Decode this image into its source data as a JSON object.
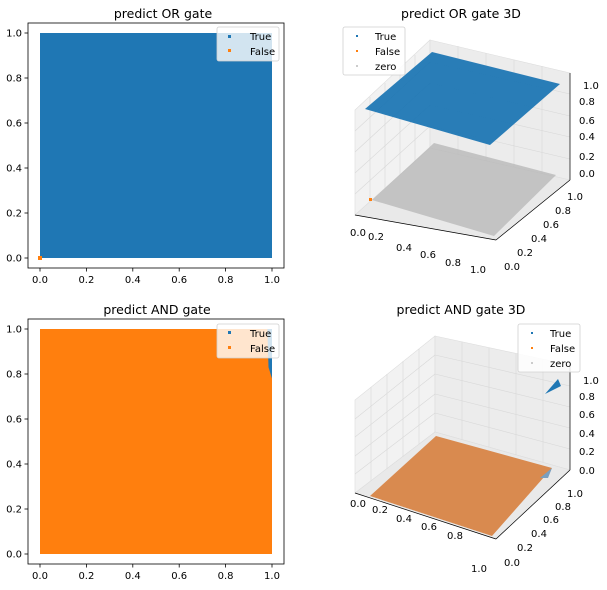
{
  "colors": {
    "true": "#1f77b4",
    "false": "#ff7f0e",
    "zero_plane": "#bdbdbd",
    "pane": "#f2f2f2",
    "grid": "#cccccc"
  },
  "chart_data": [
    {
      "type": "scatter",
      "title": "predict OR gate",
      "xlim": [
        0,
        1
      ],
      "ylim": [
        0,
        1
      ],
      "xticks": [
        "0.0",
        "0.2",
        "0.4",
        "0.6",
        "0.8",
        "1.0"
      ],
      "yticks": [
        "0.0",
        "0.2",
        "0.4",
        "0.6",
        "0.8",
        "1.0"
      ],
      "legend": {
        "placement": "top-right",
        "entries": [
          "True",
          "False"
        ]
      },
      "series": [
        {
          "name": "True",
          "color": "#1f77b4",
          "region": [
            [
              0,
              0
            ],
            [
              1,
              0
            ],
            [
              1,
              1
            ],
            [
              0,
              1
            ]
          ]
        },
        {
          "name": "False",
          "color": "#ff7f0e",
          "points": [
            [
              0,
              0
            ]
          ]
        }
      ]
    },
    {
      "type": "scatter3d",
      "title": "predict OR gate 3D",
      "xticks": [
        "0.0",
        "0.2",
        "0.4",
        "0.6",
        "0.8",
        "1.0"
      ],
      "yticks": [
        "0.0",
        "0.2",
        "0.4",
        "0.6",
        "0.8",
        "1.0"
      ],
      "zticks": [
        "0.0",
        "0.2",
        "0.4",
        "0.6",
        "0.8",
        "1.0"
      ],
      "legend": {
        "placement": "top-left",
        "entries": [
          "True",
          "False",
          "zero"
        ]
      },
      "surfaces": [
        {
          "name": "zero",
          "z": 0
        },
        {
          "name": "True",
          "z": 1
        }
      ],
      "false_points": [
        [
          0,
          0,
          0
        ]
      ]
    },
    {
      "type": "scatter",
      "title": "predict AND gate",
      "xlim": [
        0,
        1
      ],
      "ylim": [
        0,
        1
      ],
      "xticks": [
        "0.0",
        "0.2",
        "0.4",
        "0.6",
        "0.8",
        "1.0"
      ],
      "yticks": [
        "0.0",
        "0.2",
        "0.4",
        "0.6",
        "0.8",
        "1.0"
      ],
      "legend": {
        "placement": "top-right",
        "entries": [
          "True",
          "False"
        ]
      },
      "series": [
        {
          "name": "False",
          "color": "#ff7f0e",
          "region": [
            [
              0,
              0
            ],
            [
              1,
              0
            ],
            [
              1,
              1
            ],
            [
              0,
              1
            ]
          ]
        },
        {
          "name": "True",
          "color": "#1f77b4",
          "region": [
            [
              0.985,
              0.83
            ],
            [
              1,
              0.78
            ],
            [
              1,
              1
            ],
            [
              0.98,
              1
            ]
          ]
        }
      ]
    },
    {
      "type": "scatter3d",
      "title": "predict AND gate 3D",
      "xticks": [
        "0.0",
        "0.2",
        "0.4",
        "0.6",
        "0.8",
        "1.0"
      ],
      "yticks": [
        "0.0",
        "0.2",
        "0.4",
        "0.6",
        "0.8",
        "1.0"
      ],
      "zticks": [
        "0.0",
        "0.2",
        "0.4",
        "0.6",
        "0.8",
        "1.0"
      ],
      "legend": {
        "placement": "top-right",
        "entries": [
          "True",
          "False",
          "zero"
        ]
      },
      "surfaces": [
        {
          "name": "False",
          "z": 0
        }
      ],
      "true_points": [
        [
          0.95,
          0.95,
          1
        ]
      ]
    }
  ]
}
